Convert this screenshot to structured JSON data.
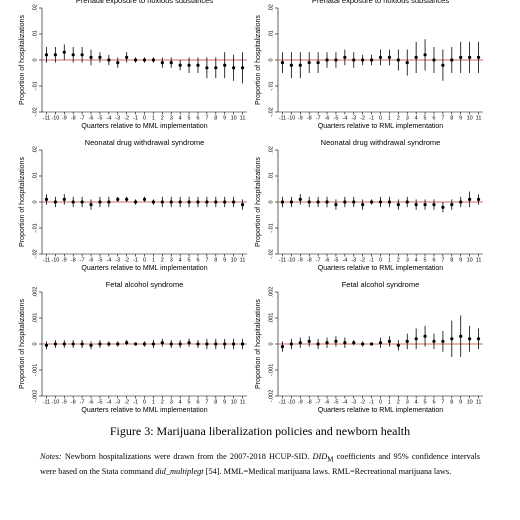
{
  "chart_data": [
    {
      "type": "errorbar",
      "title": "Prenatal exposure to noxious substances",
      "xlabel": "Quarters relative to MML implementation",
      "ylabel": "Proportion of hospitalizations",
      "x": [
        -11,
        -10,
        -9,
        -8,
        -7,
        -6,
        -5,
        -4,
        -3,
        -2,
        -1,
        0,
        1,
        2,
        3,
        4,
        5,
        6,
        7,
        8,
        9,
        10,
        11
      ],
      "values": [
        0.002,
        0.002,
        0.003,
        0.002,
        0.002,
        0.001,
        0.001,
        0,
        -0.001,
        0.001,
        0,
        0,
        0,
        -0.001,
        -0.001,
        -0.002,
        -0.002,
        -0.002,
        -0.003,
        -0.003,
        -0.002,
        -0.003,
        -0.003
      ],
      "errors": [
        0.003,
        0.003,
        0.003,
        0.003,
        0.003,
        0.003,
        0.002,
        0.002,
        0.002,
        0.002,
        0.001,
        0.001,
        0.001,
        0.002,
        0.002,
        0.002,
        0.003,
        0.003,
        0.004,
        0.004,
        0.005,
        0.005,
        0.006
      ],
      "xlim": [
        -11.5,
        11.5
      ],
      "xticks": [
        -11,
        -10,
        -9,
        -8,
        -7,
        -6,
        -5,
        -4,
        -3,
        -2,
        -1,
        0,
        1,
        2,
        3,
        4,
        5,
        6,
        7,
        8,
        9,
        10,
        11
      ],
      "ylim": [
        -0.02,
        0.02
      ],
      "yticks": [
        {
          "value": -0.02,
          "label": "-.02"
        },
        {
          "value": -0.01,
          "label": "-.01"
        },
        0,
        {
          "value": 0.01,
          "label": ".01"
        },
        {
          "value": 0.02,
          "label": ".02"
        }
      ],
      "color": "#000000",
      "refline_color": "#c0392b"
    },
    {
      "type": "errorbar",
      "title": "Prenatal exposure to noxious substances",
      "xlabel": "Quarters relative to RML implementation",
      "ylabel": "Proportion of hospitalizations",
      "x": [
        -11,
        -10,
        -9,
        -8,
        -7,
        -6,
        -5,
        -4,
        -3,
        -2,
        -1,
        0,
        1,
        2,
        3,
        4,
        5,
        6,
        7,
        8,
        9,
        10,
        11
      ],
      "values": [
        -0.001,
        -0.002,
        -0.002,
        -0.001,
        -0.001,
        0,
        0,
        0.001,
        0,
        0,
        0,
        0.001,
        0.001,
        0,
        -0.001,
        0.001,
        0.002,
        0,
        -0.002,
        0,
        0.001,
        0.001,
        0.001
      ],
      "errors": [
        0.004,
        0.005,
        0.005,
        0.004,
        0.004,
        0.003,
        0.003,
        0.003,
        0.003,
        0.002,
        0.002,
        0.003,
        0.003,
        0.004,
        0.005,
        0.006,
        0.006,
        0.005,
        0.006,
        0.005,
        0.006,
        0.006,
        0.006
      ],
      "xlim": [
        -11.5,
        11.5
      ],
      "xticks": [
        -11,
        -10,
        -9,
        -8,
        -7,
        -6,
        -5,
        -4,
        -3,
        -2,
        -1,
        0,
        1,
        2,
        3,
        4,
        5,
        6,
        7,
        8,
        9,
        10,
        11
      ],
      "ylim": [
        -0.02,
        0.02
      ],
      "yticks": [
        {
          "value": -0.02,
          "label": "-.02"
        },
        {
          "value": -0.01,
          "label": "-.01"
        },
        0,
        {
          "value": 0.01,
          "label": ".01"
        },
        {
          "value": 0.02,
          "label": ".02"
        }
      ],
      "color": "#000000",
      "refline_color": "#c0392b"
    },
    {
      "type": "errorbar",
      "title": "Neonatal drug withdrawal syndrome",
      "xlabel": "Quarters relative to MML implementation",
      "ylabel": "Proportion of hospitalizations",
      "x": [
        -11,
        -10,
        -9,
        -8,
        -7,
        -6,
        -5,
        -4,
        -3,
        -2,
        -1,
        0,
        1,
        2,
        3,
        4,
        5,
        6,
        7,
        8,
        9,
        10,
        11
      ],
      "values": [
        0.001,
        0,
        0.001,
        0,
        0,
        -0.001,
        0,
        0,
        0.001,
        0.001,
        0,
        0.001,
        0,
        0,
        0,
        0,
        0,
        0,
        0,
        0,
        0,
        0,
        -0.001
      ],
      "errors": [
        0.002,
        0.002,
        0.002,
        0.002,
        0.002,
        0.002,
        0.002,
        0.002,
        0.001,
        0.001,
        0.001,
        0.001,
        0.001,
        0.002,
        0.002,
        0.002,
        0.002,
        0.002,
        0.002,
        0.002,
        0.002,
        0.002,
        0.002
      ],
      "xlim": [
        -11.5,
        11.5
      ],
      "xticks": [
        -11,
        -10,
        -9,
        -8,
        -7,
        -6,
        -5,
        -4,
        -3,
        -2,
        -1,
        0,
        1,
        2,
        3,
        4,
        5,
        6,
        7,
        8,
        9,
        10,
        11
      ],
      "ylim": [
        -0.02,
        0.02
      ],
      "yticks": [
        {
          "value": -0.02,
          "label": "-.02"
        },
        {
          "value": -0.01,
          "label": "-.01"
        },
        0,
        {
          "value": 0.01,
          "label": ".01"
        },
        {
          "value": 0.02,
          "label": ".02"
        }
      ],
      "color": "#000000",
      "refline_color": "#c0392b"
    },
    {
      "type": "errorbar",
      "title": "Neonatal drug withdrawal syndrome",
      "xlabel": "Quarters relative to RML implementation",
      "ylabel": "Proportion of hospitalizations",
      "x": [
        -11,
        -10,
        -9,
        -8,
        -7,
        -6,
        -5,
        -4,
        -3,
        -2,
        -1,
        0,
        1,
        2,
        3,
        4,
        5,
        6,
        7,
        8,
        9,
        10,
        11
      ],
      "values": [
        0,
        0,
        0.001,
        0,
        0,
        0,
        -0.001,
        0,
        0,
        -0.001,
        0,
        0,
        0,
        -0.001,
        0,
        -0.001,
        -0.001,
        -0.001,
        -0.002,
        -0.001,
        0,
        0.001,
        0.001
      ],
      "errors": [
        0.002,
        0.002,
        0.002,
        0.002,
        0.002,
        0.002,
        0.002,
        0.002,
        0.002,
        0.002,
        0.001,
        0.002,
        0.002,
        0.002,
        0.002,
        0.002,
        0.002,
        0.002,
        0.002,
        0.002,
        0.002,
        0.003,
        0.002
      ],
      "xlim": [
        -11.5,
        11.5
      ],
      "xticks": [
        -11,
        -10,
        -9,
        -8,
        -7,
        -6,
        -5,
        -4,
        -3,
        -2,
        -1,
        0,
        1,
        2,
        3,
        4,
        5,
        6,
        7,
        8,
        9,
        10,
        11
      ],
      "ylim": [
        -0.02,
        0.02
      ],
      "yticks": [
        {
          "value": -0.02,
          "label": "-.02"
        },
        {
          "value": -0.01,
          "label": "-.01"
        },
        0,
        {
          "value": 0.01,
          "label": ".01"
        },
        {
          "value": 0.02,
          "label": ".02"
        }
      ],
      "color": "#000000",
      "refline_color": "#c0392b"
    },
    {
      "type": "errorbar",
      "title": "Fetal alcohol syndrome",
      "xlabel": "Quarters relative to MML implementation",
      "ylabel": "Proportion of hospitalizations",
      "x": [
        -11,
        -10,
        -9,
        -8,
        -7,
        -6,
        -5,
        -4,
        -3,
        -2,
        -1,
        0,
        1,
        2,
        3,
        4,
        5,
        6,
        7,
        8,
        9,
        10,
        11
      ],
      "values": [
        -5e-05,
        0,
        0,
        0,
        0,
        -5e-05,
        0,
        0,
        0,
        5e-05,
        0,
        0,
        0,
        5e-05,
        0,
        0,
        5e-05,
        0,
        0,
        0,
        0,
        0,
        0
      ],
      "errors": [
        0.00015,
        0.00015,
        0.00015,
        0.00015,
        0.00015,
        0.00015,
        0.00015,
        0.0001,
        0.0001,
        0.0001,
        5e-05,
        0.0001,
        0.00015,
        0.00015,
        0.00015,
        0.00015,
        0.00015,
        0.00015,
        0.0002,
        0.0002,
        0.0002,
        0.0002,
        0.0002
      ],
      "xlim": [
        -11.5,
        11.5
      ],
      "xticks": [
        -11,
        -10,
        -9,
        -8,
        -7,
        -6,
        -5,
        -4,
        -3,
        -2,
        -1,
        0,
        1,
        2,
        3,
        4,
        5,
        6,
        7,
        8,
        9,
        10,
        11
      ],
      "ylim": [
        -0.002,
        0.002
      ],
      "yticks": [
        {
          "value": -0.002,
          "label": "-.002"
        },
        {
          "value": -0.001,
          "label": "-.001"
        },
        0,
        {
          "value": 0.001,
          "label": ".001"
        },
        {
          "value": 0.002,
          "label": ".002"
        }
      ],
      "color": "#000000",
      "refline_color": "#c0392b"
    },
    {
      "type": "errorbar",
      "title": "Fetal alcohol syndrome",
      "xlabel": "Quarters relative to RML implementation",
      "ylabel": "Proportion of hospitalizations",
      "x": [
        -11,
        -10,
        -9,
        -8,
        -7,
        -6,
        -5,
        -4,
        -3,
        -2,
        -1,
        0,
        1,
        2,
        3,
        4,
        5,
        6,
        7,
        8,
        9,
        10,
        11
      ],
      "values": [
        -0.0001,
        0,
        5e-05,
        0.0001,
        0,
        5e-05,
        0.0001,
        5e-05,
        5e-05,
        0,
        0,
        5e-05,
        0.0001,
        -5e-05,
        0.0001,
        0.0002,
        0.0003,
        0.0001,
        0.0001,
        0.0002,
        0.0003,
        0.0002,
        0.0002
      ],
      "errors": [
        0.0002,
        0.0002,
        0.0002,
        0.0002,
        0.0002,
        0.0002,
        0.0002,
        0.0002,
        0.0001,
        0.0001,
        5e-05,
        0.0002,
        0.0002,
        0.0002,
        0.0003,
        0.0004,
        0.0004,
        0.0003,
        0.0004,
        0.0007,
        0.0008,
        0.0005,
        0.0004
      ],
      "xlim": [
        -11.5,
        11.5
      ],
      "xticks": [
        -11,
        -10,
        -9,
        -8,
        -7,
        -6,
        -5,
        -4,
        -3,
        -2,
        -1,
        0,
        1,
        2,
        3,
        4,
        5,
        6,
        7,
        8,
        9,
        10,
        11
      ],
      "ylim": [
        -0.002,
        0.002
      ],
      "yticks": [
        {
          "value": -0.002,
          "label": "-.002"
        },
        {
          "value": -0.001,
          "label": "-.001"
        },
        0,
        {
          "value": 0.001,
          "label": ".001"
        },
        {
          "value": 0.002,
          "label": ".002"
        }
      ],
      "color": "#000000",
      "refline_color": "#c0392b"
    }
  ],
  "caption": "Figure 3: Marijuana liberalization policies and newborn health",
  "notes": [
    "Notes:",
    " Newborn hospitalizations were drawn from the 2007-2018 HCUP-SID. ",
    "DID",
    "M",
    " coefficients and 95% confidence intervals were based on the Stata command ",
    "did_multiplegt",
    " [54]. MML=Medical marijuana laws. RML=Recreational marijuana laws."
  ]
}
